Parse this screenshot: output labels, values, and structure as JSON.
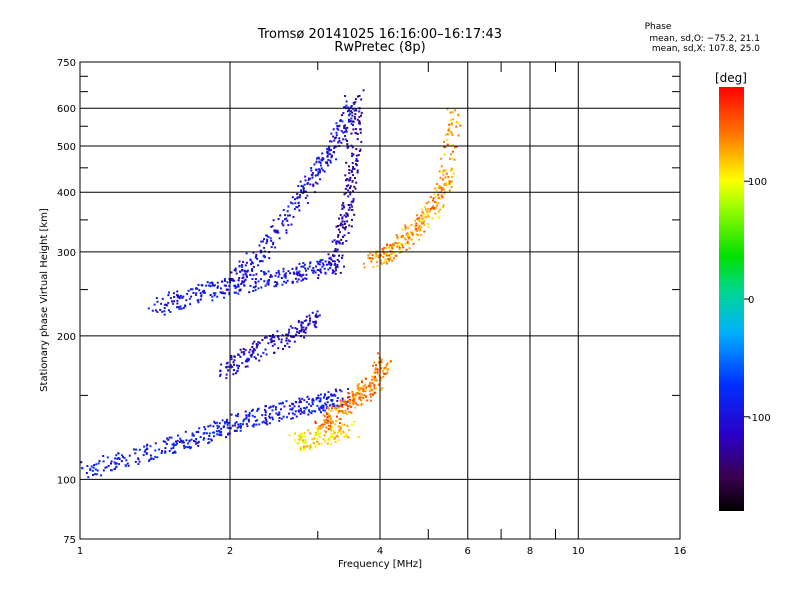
{
  "header": {
    "title_line1": "Tromsø 20141025 16:16:00–16:17:43",
    "title_line2": "RwPretec (8p)"
  },
  "phase_stats": {
    "title": "Phase",
    "line1": "mean, sd,O: −75.2, 21.1",
    "line2": "mean, sd,X: 107.8, 25.0"
  },
  "chart_data": {
    "type": "scatter",
    "xlabel": "Frequency [MHz]",
    "ylabel": "Stationary phase Virtual Height [km]",
    "xscale": "log",
    "yscale": "log",
    "xlim": [
      1,
      16
    ],
    "ylim": [
      75,
      750
    ],
    "x_ticks": [
      "1",
      "2",
      "4",
      "6",
      "8",
      "10",
      "16"
    ],
    "y_ticks": [
      "75",
      "100",
      "200",
      "300",
      "400",
      "500",
      "600",
      "750"
    ],
    "grid": true,
    "colorbar": {
      "label": "[deg]",
      "ticks": [
        "100",
        "0",
        "-100"
      ],
      "range": [
        -180,
        180
      ]
    },
    "traces": [
      {
        "x": [
          1.0,
          1.3,
          1.6,
          1.9,
          2.2,
          2.6,
          3.0,
          3.4
        ],
        "y": [
          105,
          112,
          120,
          128,
          135,
          140,
          145,
          150
        ],
        "phase": -90
      },
      {
        "x": [
          1.4,
          1.7,
          2.0,
          2.4,
          2.8,
          3.3
        ],
        "y": [
          230,
          245,
          255,
          265,
          275,
          285
        ],
        "phase": -95
      },
      {
        "x": [
          2.0,
          2.3,
          2.7,
          3.0,
          3.3,
          3.5
        ],
        "y": [
          260,
          300,
          380,
          450,
          520,
          620
        ],
        "phase": -100
      },
      {
        "x": [
          3.2,
          3.4,
          3.5,
          3.6
        ],
        "y": [
          280,
          350,
          450,
          640
        ],
        "phase": -120
      },
      {
        "x": [
          3.8,
          4.2,
          4.6,
          5.0,
          5.4,
          5.6
        ],
        "y": [
          290,
          300,
          330,
          360,
          420,
          580
        ],
        "phase": 130
      },
      {
        "x": [
          3.0,
          3.3,
          3.6,
          3.9,
          4.1
        ],
        "y": [
          130,
          140,
          150,
          160,
          180
        ],
        "phase": 140
      },
      {
        "x": [
          2.7,
          3.0,
          3.5
        ],
        "y": [
          120,
          123,
          128
        ],
        "phase": 110
      },
      {
        "x": [
          1.9,
          2.2,
          2.6,
          3.0
        ],
        "y": [
          170,
          185,
          200,
          220
        ],
        "phase": -110
      }
    ]
  }
}
